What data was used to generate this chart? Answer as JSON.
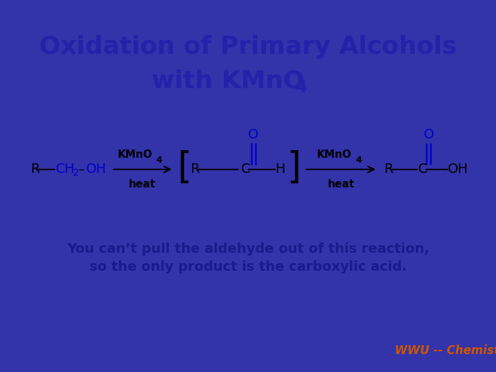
{
  "title_line1": "Oxidation of Primary Alcohols",
  "title_line2": "with KMnO",
  "title_subscript": "4",
  "title_color": "#2222aa",
  "border_color": "#3333aa",
  "body_color": "#ffffff",
  "reaction_color": "#000000",
  "blue_color": "#0000cc",
  "desc_color": "#1a1a8c",
  "description_line1": "You can’t pull the aldehyde out of this reaction,",
  "description_line2": "so the only product is the carboxylic acid.",
  "footer": "WWU -- Chemistry",
  "footer_color": "#cc5500"
}
